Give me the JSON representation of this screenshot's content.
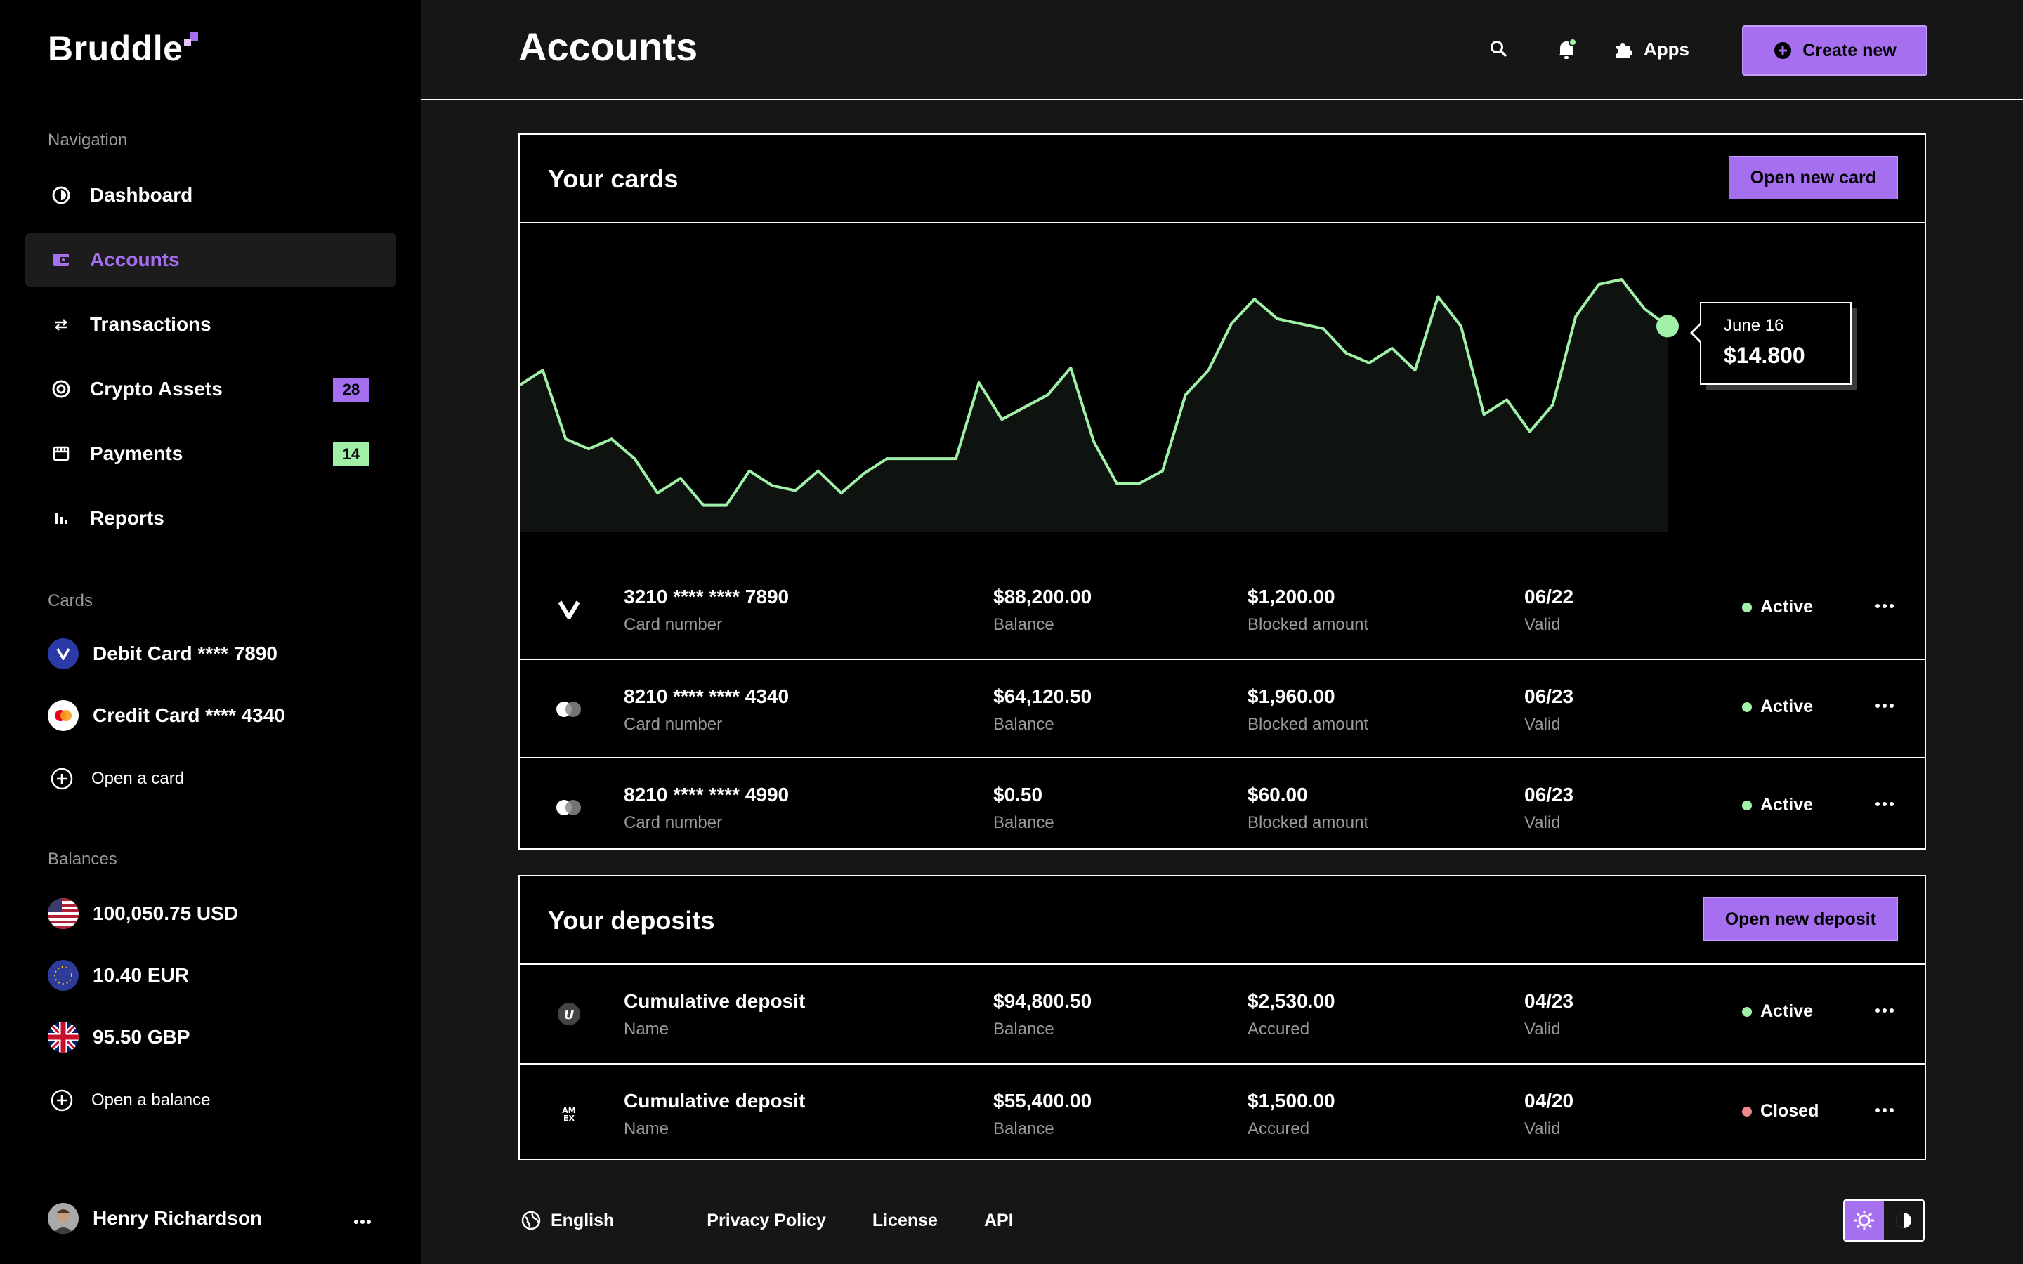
{
  "brand": {
    "name": "Bruddle"
  },
  "sidebar": {
    "navigation_label": "Navigation",
    "items": [
      {
        "label": "Dashboard",
        "icon": "dashboard-icon"
      },
      {
        "label": "Accounts",
        "icon": "wallet-icon",
        "active": true
      },
      {
        "label": "Transactions",
        "icon": "transfer-arrows-icon"
      },
      {
        "label": "Crypto Assets",
        "icon": "crypto-icon",
        "badge": "28"
      },
      {
        "label": "Payments",
        "icon": "payments-icon",
        "badge": "14"
      },
      {
        "label": "Reports",
        "icon": "bar-chart-icon"
      }
    ],
    "cards_label": "Cards",
    "cards": [
      {
        "label": "Debit Card **** 7890",
        "icon": "visa-icon"
      },
      {
        "label": "Credit Card **** 4340",
        "icon": "mastercard-icon"
      }
    ],
    "open_card": "Open a card",
    "balances_label": "Balances",
    "balances": [
      {
        "label": "100,050.75 USD",
        "icon": "us-flag-icon"
      },
      {
        "label": "10.40 EUR",
        "icon": "eu-flag-icon"
      },
      {
        "label": "95.50 GBP",
        "icon": "uk-flag-icon"
      }
    ],
    "open_balance": "Open a balance",
    "user": {
      "name": "Henry Richardson"
    }
  },
  "header": {
    "title": "Accounts",
    "apps_label": "Apps",
    "create_label": "Create new"
  },
  "cards_panel": {
    "title": "Your cards",
    "button": "Open new card",
    "tooltip": {
      "date": "June 16",
      "value": "$14.800"
    },
    "rows": [
      {
        "number": "3210 **** **** 7890",
        "number_label": "Card number",
        "balance": "$88,200.00",
        "balance_label": "Balance",
        "blocked": "$1,200.00",
        "blocked_label": "Blocked amount",
        "valid": "06/22",
        "valid_label": "Valid",
        "status": "Active",
        "brand_icon": "visa-icon"
      },
      {
        "number": "8210 **** **** 4340",
        "number_label": "Card number",
        "balance": "$64,120.50",
        "balance_label": "Balance",
        "blocked": "$1,960.00",
        "blocked_label": "Blocked amount",
        "valid": "06/23",
        "valid_label": "Valid",
        "status": "Active",
        "brand_icon": "mastercard-icon"
      },
      {
        "number": "8210 **** **** 4990",
        "number_label": "Card number",
        "balance": "$0.50",
        "balance_label": "Balance",
        "blocked": "$60.00",
        "blocked_label": "Blocked amount",
        "valid": "06/23",
        "valid_label": "Valid",
        "status": "Active",
        "brand_icon": "mastercard-icon"
      }
    ]
  },
  "deposits_panel": {
    "title": "Your deposits",
    "button": "Open new deposit",
    "rows": [
      {
        "name": "Cumulative deposit",
        "name_label": "Name",
        "balance": "$94,800.50",
        "balance_label": "Balance",
        "accrued": "$2,530.00",
        "accrued_label": "Accured",
        "valid": "04/23",
        "valid_label": "Valid",
        "status": "Active",
        "brand_icon": "unionpay-icon"
      },
      {
        "name": "Cumulative deposit",
        "name_label": "Name",
        "balance": "$55,400.00",
        "balance_label": "Balance",
        "accrued": "$1,500.00",
        "accrued_label": "Accured",
        "valid": "04/20",
        "valid_label": "Valid",
        "status": "Closed",
        "brand_icon": "amex-icon"
      }
    ]
  },
  "footer": {
    "language": "English",
    "links": [
      "Privacy Policy",
      "License",
      "API"
    ]
  },
  "colors": {
    "accent": "#a66ff0",
    "active_green": "#a0f0a8",
    "closed_red": "#f08a8a",
    "chart_line": "#a0f0a8"
  },
  "chart_data": {
    "type": "line",
    "series": [
      {
        "values": [
          60,
          66,
          38,
          34,
          38,
          30,
          16,
          22,
          11,
          11,
          25,
          19,
          17,
          25,
          16,
          24,
          30,
          30,
          30,
          30,
          61,
          46,
          51,
          56,
          67,
          37,
          20,
          20,
          25,
          56,
          66,
          85,
          95,
          87,
          85,
          83,
          73,
          69,
          75,
          66,
          96,
          84,
          48,
          54,
          41,
          52,
          88,
          101,
          103,
          91,
          84
        ]
      }
    ],
    "highlight": {
      "index": 50,
      "date": "June 16",
      "value": "$14.800"
    }
  }
}
